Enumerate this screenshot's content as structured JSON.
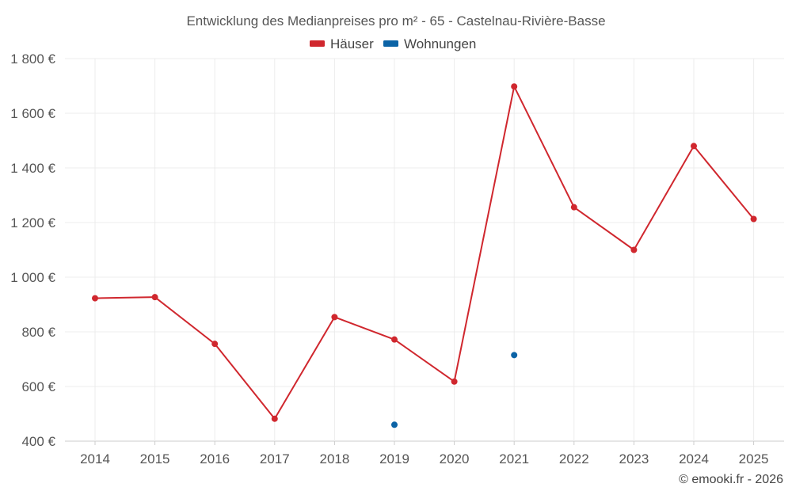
{
  "chart_data": {
    "type": "line",
    "title": "Entwicklung des Medianpreises pro m² - 65 - Castelnau-Rivière-Basse",
    "xlabel": "",
    "ylabel": "",
    "categories": [
      "2014",
      "2015",
      "2016",
      "2017",
      "2018",
      "2019",
      "2020",
      "2021",
      "2022",
      "2023",
      "2024",
      "2025"
    ],
    "ylim": [
      400,
      1800
    ],
    "yticks": [
      400,
      600,
      800,
      1000,
      1200,
      1400,
      1600,
      1800
    ],
    "ytick_labels": [
      "400 €",
      "600 €",
      "800 €",
      "1 000 €",
      "1 200 €",
      "1 400 €",
      "1 600 €",
      "1 800 €"
    ],
    "grid": true,
    "legend_position": "top-center",
    "series": [
      {
        "name": "Häuser",
        "color": "#d0272e",
        "values": [
          923,
          927,
          756,
          482,
          854,
          772,
          618,
          1698,
          1256,
          1100,
          1480,
          1213
        ]
      },
      {
        "name": "Wohnungen",
        "color": "#0b63a6",
        "values": [
          null,
          null,
          null,
          null,
          null,
          460,
          null,
          715,
          null,
          null,
          null,
          null
        ]
      }
    ]
  },
  "footer": {
    "credit": "© emooki.fr - 2026"
  }
}
